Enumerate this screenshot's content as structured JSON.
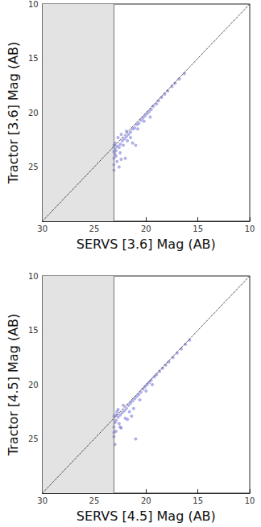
{
  "chart_data": [
    {
      "type": "scatter",
      "x_label": "SERVS [3.6] Mag (AB)",
      "y_label": "Tractor [3.6] Mag (AB)",
      "color": "#6f6fd8",
      "marker": "circle",
      "xlim": [
        30,
        10
      ],
      "xticks": [
        30,
        25,
        20,
        15,
        10
      ],
      "ylim": [
        10,
        30
      ],
      "yticks": [
        10,
        15,
        20,
        25
      ],
      "x": [
        16.3,
        16.8,
        17.2,
        17.5,
        17.9,
        18.2,
        18.5,
        18.8,
        19.0,
        19.3,
        19.5,
        19.7,
        19.9,
        20.1,
        20.3,
        20.5,
        20.7,
        20.9,
        21.1,
        21.3,
        21.5,
        21.7,
        21.9,
        22.1,
        22.3,
        22.5,
        22.6,
        22.8,
        22.9,
        23.0,
        23.1,
        23.0,
        22.7,
        23.1,
        22.9,
        23.1,
        22.8,
        22.5,
        22.2,
        21.8,
        21.5,
        21.9,
        22.4,
        23.1,
        22.6,
        21.3,
        20.8,
        20.2,
        22.0,
        23.0,
        23.1,
        22.4,
        21.0,
        19.6
      ],
      "values": [
        16.4,
        16.9,
        17.3,
        17.6,
        18.0,
        18.3,
        18.6,
        18.9,
        19.2,
        19.4,
        19.7,
        19.9,
        20.1,
        20.3,
        20.5,
        20.7,
        21.0,
        21.1,
        21.4,
        21.5,
        21.8,
        22.0,
        22.2,
        22.4,
        22.6,
        22.9,
        23.2,
        23.1,
        23.5,
        23.8,
        24.2,
        22.8,
        22.3,
        23.0,
        24.0,
        24.8,
        24.5,
        23.7,
        23.0,
        22.6,
        22.3,
        21.7,
        22.0,
        25.3,
        25.0,
        22.8,
        21.5,
        20.8,
        24.2,
        23.3,
        23.6,
        24.3,
        23.0,
        20.4
      ],
      "reference_line": {
        "x": [
          30,
          10
        ],
        "y": [
          30,
          10
        ],
        "line_style": "dotted",
        "color": "#000000"
      },
      "shaded_region": {
        "x": [
          30,
          23.1
        ],
        "color": "#e3e3e3",
        "edge_color": "#888888"
      }
    },
    {
      "type": "scatter",
      "x_label": "SERVS [4.5] Mag (AB)",
      "y_label": "Tractor [4.5] Mag (AB)",
      "color": "#6f6fd8",
      "marker": "circle",
      "xlim": [
        30,
        10
      ],
      "xticks": [
        30,
        25,
        20,
        15,
        10
      ],
      "ylim": [
        10,
        30
      ],
      "yticks": [
        10,
        15,
        20,
        25
      ],
      "x": [
        15.8,
        16.2,
        16.6,
        17.0,
        17.4,
        17.8,
        18.1,
        18.4,
        18.7,
        19.0,
        19.2,
        19.5,
        19.7,
        19.9,
        20.1,
        20.3,
        20.5,
        20.7,
        20.9,
        21.1,
        21.3,
        21.5,
        21.7,
        21.9,
        22.1,
        22.3,
        22.5,
        22.7,
        22.9,
        23.0,
        23.1,
        23.1,
        22.8,
        22.6,
        22.9,
        23.1,
        22.4,
        22.0,
        21.6,
        21.2,
        22.2,
        22.7,
        23.0,
        21.0,
        20.6,
        21.8,
        22.5,
        23.1,
        20.0,
        19.4,
        22.9,
        21.4
      ],
      "values": [
        15.9,
        16.3,
        16.7,
        17.1,
        17.5,
        17.9,
        18.2,
        18.5,
        18.8,
        19.1,
        19.3,
        19.6,
        19.8,
        20.0,
        20.2,
        20.4,
        20.7,
        20.9,
        21.1,
        21.3,
        21.5,
        21.7,
        21.9,
        22.2,
        22.4,
        22.6,
        22.8,
        23.0,
        23.3,
        23.5,
        23.9,
        22.9,
        22.5,
        23.6,
        24.3,
        24.8,
        24.0,
        23.1,
        22.5,
        22.2,
        21.9,
        22.3,
        25.5,
        25.0,
        21.4,
        23.2,
        23.9,
        24.4,
        20.6,
        20.0,
        22.8,
        22.9
      ],
      "reference_line": {
        "x": [
          30,
          10
        ],
        "y": [
          30,
          10
        ],
        "line_style": "dotted",
        "color": "#000000"
      },
      "shaded_region": {
        "x": [
          30,
          23.1
        ],
        "color": "#e3e3e3",
        "edge_color": "#888888"
      }
    }
  ]
}
